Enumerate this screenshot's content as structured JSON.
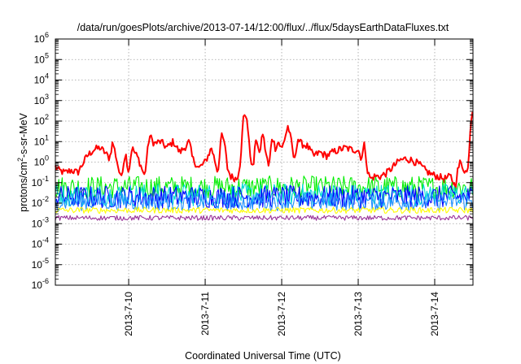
{
  "chart_data": {
    "type": "line",
    "title": "/data/run/goesPlots/archive/2013-07-14/12:00/flux/../flux/5daysEarthDataFluxes.txt",
    "xlabel": "Coordinated Universal Time (UTC)",
    "ylabel_parts": [
      "protons/cm",
      "2",
      "-s-sr-MeV"
    ],
    "y_scale": "log",
    "ylim": [
      1e-06,
      1000000.0
    ],
    "y_ticks": [
      {
        "base": "10",
        "exp": "-6",
        "value": 1e-06
      },
      {
        "base": "10",
        "exp": "-5",
        "value": 1e-05
      },
      {
        "base": "10",
        "exp": "-4",
        "value": 0.0001
      },
      {
        "base": "10",
        "exp": "-3",
        "value": 0.001
      },
      {
        "base": "10",
        "exp": "-2",
        "value": 0.01
      },
      {
        "base": "10",
        "exp": "-1",
        "value": 0.1
      },
      {
        "base": "10",
        "exp": "0",
        "value": 1
      },
      {
        "base": "10",
        "exp": "1",
        "value": 10
      },
      {
        "base": "10",
        "exp": "2",
        "value": 100
      },
      {
        "base": "10",
        "exp": "3",
        "value": 1000
      },
      {
        "base": "10",
        "exp": "4",
        "value": 10000
      },
      {
        "base": "10",
        "exp": "5",
        "value": 100000
      },
      {
        "base": "10",
        "exp": "6",
        "value": 1000000
      }
    ],
    "xlim": [
      "2013-07-09 01:00",
      "2013-07-14 12:00"
    ],
    "x_ticks": [
      {
        "label": "2013-7-10",
        "value": "2013-07-10 00:00"
      },
      {
        "label": "2013-7-11",
        "value": "2013-07-11 00:00"
      },
      {
        "label": "2013-7-12",
        "value": "2013-07-12 00:00"
      },
      {
        "label": "2013-7-13",
        "value": "2013-07-13 00:00"
      },
      {
        "label": "2013-7-14",
        "value": "2013-07-14 00:00"
      }
    ],
    "grid": true,
    "legend": "none",
    "series": [
      {
        "color": "#ff0000",
        "noise": 0.18,
        "points": [
          [
            "2013-07-09 01:00",
            0.6
          ],
          [
            "2013-07-09 02:00",
            0.4
          ],
          [
            "2013-07-09 04:00",
            0.3
          ],
          [
            "2013-07-09 06:00",
            0.4
          ],
          [
            "2013-07-09 08:00",
            0.3
          ],
          [
            "2013-07-09 09:30",
            0.8
          ],
          [
            "2013-07-09 11:00",
            2
          ],
          [
            "2013-07-09 13:00",
            4
          ],
          [
            "2013-07-09 15:00",
            5
          ],
          [
            "2013-07-09 16:30",
            3
          ],
          [
            "2013-07-09 18:00",
            1.5
          ],
          [
            "2013-07-09 19:00",
            10
          ],
          [
            "2013-07-09 20:00",
            2
          ],
          [
            "2013-07-09 21:30",
            0.15
          ],
          [
            "2013-07-09 23:00",
            3
          ],
          [
            "2013-07-10 00:00",
            0.3
          ],
          [
            "2013-07-10 01:00",
            5
          ],
          [
            "2013-07-10 03:00",
            1.5
          ],
          [
            "2013-07-10 05:00",
            0.2
          ],
          [
            "2013-07-10 06:30",
            20
          ],
          [
            "2013-07-10 08:00",
            8
          ],
          [
            "2013-07-10 10:00",
            10
          ],
          [
            "2013-07-10 12:00",
            5
          ],
          [
            "2013-07-10 14:00",
            10
          ],
          [
            "2013-07-10 16:00",
            3
          ],
          [
            "2013-07-10 17:30",
            5
          ],
          [
            "2013-07-10 19:00",
            10
          ],
          [
            "2013-07-10 20:00",
            1.5
          ],
          [
            "2013-07-10 22:00",
            0.5
          ],
          [
            "2013-07-11 00:00",
            1
          ],
          [
            "2013-07-11 02:00",
            5
          ],
          [
            "2013-07-11 04:00",
            0.3
          ],
          [
            "2013-07-11 05:00",
            20
          ],
          [
            "2013-07-11 06:00",
            10
          ],
          [
            "2013-07-11 07:00",
            0.5
          ],
          [
            "2013-07-11 08:00",
            0.2
          ],
          [
            "2013-07-11 10:00",
            0.15
          ],
          [
            "2013-07-11 11:00",
            1
          ],
          [
            "2013-07-11 12:00",
            150
          ],
          [
            "2013-07-11 13:00",
            200
          ],
          [
            "2013-07-11 14:00",
            3
          ],
          [
            "2013-07-11 15:00",
            0.4
          ],
          [
            "2013-07-11 16:00",
            20
          ],
          [
            "2013-07-11 17:00",
            2
          ],
          [
            "2013-07-11 18:00",
            30
          ],
          [
            "2013-07-11 19:00",
            3
          ],
          [
            "2013-07-11 20:00",
            0.5
          ],
          [
            "2013-07-11 21:00",
            20
          ],
          [
            "2013-07-11 22:00",
            5
          ],
          [
            "2013-07-11 23:00",
            10
          ],
          [
            "2013-07-12 00:00",
            4
          ],
          [
            "2013-07-12 02:00",
            60
          ],
          [
            "2013-07-12 03:00",
            10
          ],
          [
            "2013-07-12 04:00",
            1
          ],
          [
            "2013-07-12 05:00",
            15
          ],
          [
            "2013-07-12 06:00",
            8
          ],
          [
            "2013-07-12 08:00",
            6
          ],
          [
            "2013-07-12 10:00",
            2
          ],
          [
            "2013-07-12 12:00",
            3
          ],
          [
            "2013-07-12 14:00",
            2
          ],
          [
            "2013-07-12 16:00",
            3
          ],
          [
            "2013-07-12 18:00",
            4
          ],
          [
            "2013-07-12 20:00",
            5
          ],
          [
            "2013-07-12 22:00",
            4
          ],
          [
            "2013-07-13 00:00",
            4
          ],
          [
            "2013-07-13 01:00",
            1.5
          ],
          [
            "2013-07-13 02:00",
            8
          ],
          [
            "2013-07-13 03:00",
            0.3
          ],
          [
            "2013-07-13 04:00",
            0.15
          ],
          [
            "2013-07-13 05:00",
            0.2
          ],
          [
            "2013-07-13 07:00",
            0.2
          ],
          [
            "2013-07-13 09:00",
            0.3
          ],
          [
            "2013-07-13 11:00",
            0.6
          ],
          [
            "2013-07-13 13:00",
            1.2
          ],
          [
            "2013-07-13 15:00",
            1.5
          ],
          [
            "2013-07-13 17:00",
            1.2
          ],
          [
            "2013-07-13 19:00",
            0.8
          ],
          [
            "2013-07-13 21:00",
            0.4
          ],
          [
            "2013-07-13 23:00",
            0.25
          ],
          [
            "2013-07-14 01:00",
            0.2
          ],
          [
            "2013-07-14 03:00",
            0.15
          ],
          [
            "2013-07-14 05:00",
            0.2
          ],
          [
            "2013-07-14 06:30",
            0.06
          ],
          [
            "2013-07-14 07:00",
            0.3
          ],
          [
            "2013-07-14 08:00",
            1
          ],
          [
            "2013-07-14 09:00",
            0.5
          ],
          [
            "2013-07-14 10:00",
            0.3
          ],
          [
            "2013-07-14 10:30",
            0.5
          ],
          [
            "2013-07-14 11:00",
            20
          ],
          [
            "2013-07-14 11:30",
            150
          ],
          [
            "2013-07-14 12:00",
            600
          ]
        ]
      },
      {
        "color": "#00ee00",
        "noise": 0.55,
        "points": [
          [
            "2013-07-09 01:00",
            0.06
          ],
          [
            "2013-07-14 12:00",
            0.06
          ]
        ]
      },
      {
        "color": "#00d8d8",
        "noise": 0.55,
        "points": [
          [
            "2013-07-09 01:00",
            0.025
          ],
          [
            "2013-07-14 12:00",
            0.025
          ]
        ]
      },
      {
        "color": "#0000ff",
        "noise": 0.55,
        "points": [
          [
            "2013-07-09 01:00",
            0.02
          ],
          [
            "2013-07-14 12:00",
            0.02
          ]
        ]
      },
      {
        "color": "#1e90ff",
        "noise": 0.45,
        "points": [
          [
            "2013-07-09 01:00",
            0.012
          ],
          [
            "2013-07-14 12:00",
            0.012
          ]
        ]
      },
      {
        "color": "#ffff00",
        "noise": 0.15,
        "points": [
          [
            "2013-07-09 01:00",
            0.0045
          ],
          [
            "2013-07-14 12:00",
            0.0045
          ]
        ]
      },
      {
        "color": "#993399",
        "noise": 0.12,
        "points": [
          [
            "2013-07-09 01:00",
            0.0019
          ],
          [
            "2013-07-14 12:00",
            0.0019
          ]
        ]
      }
    ]
  }
}
